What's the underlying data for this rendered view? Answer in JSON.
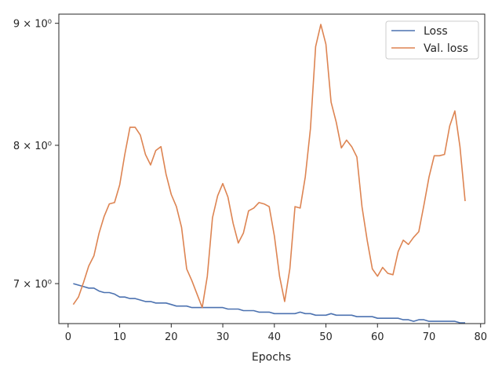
{
  "chart_data": {
    "type": "line",
    "title": "",
    "xlabel": "Epochs",
    "ylabel": "",
    "yscale": "log",
    "xlim": [
      -1.8,
      80.8
    ],
    "ylim": [
      6.735,
      9.08
    ],
    "x_ticks": [
      0,
      10,
      20,
      30,
      40,
      50,
      60,
      70,
      80
    ],
    "x_tick_labels": [
      "0",
      "10",
      "20",
      "30",
      "40",
      "50",
      "60",
      "70",
      "80"
    ],
    "y_ticks": [
      7,
      8,
      9
    ],
    "y_tick_labels": [
      "7 × 10⁰",
      "8 × 10⁰",
      "9 × 10⁰"
    ],
    "legend_position": "top-right",
    "grid": false,
    "series": [
      {
        "name": "Loss",
        "color": "#4c72b0",
        "x": [
          1,
          2,
          3,
          4,
          5,
          6,
          7,
          8,
          9,
          10,
          11,
          12,
          13,
          14,
          15,
          16,
          17,
          18,
          19,
          20,
          21,
          22,
          23,
          24,
          25,
          26,
          27,
          28,
          29,
          30,
          31,
          32,
          33,
          34,
          35,
          36,
          37,
          38,
          39,
          40,
          41,
          42,
          43,
          44,
          45,
          46,
          47,
          48,
          49,
          50,
          51,
          52,
          53,
          54,
          55,
          56,
          57,
          58,
          59,
          60,
          61,
          62,
          63,
          64,
          65,
          66,
          67,
          68,
          69,
          70,
          71,
          72,
          73,
          74,
          75,
          76,
          77
        ],
        "values": [
          7.0,
          6.99,
          6.98,
          6.97,
          6.97,
          6.95,
          6.94,
          6.94,
          6.93,
          6.91,
          6.91,
          6.9,
          6.9,
          6.89,
          6.88,
          6.88,
          6.87,
          6.87,
          6.87,
          6.86,
          6.85,
          6.85,
          6.85,
          6.84,
          6.84,
          6.84,
          6.84,
          6.84,
          6.84,
          6.84,
          6.83,
          6.83,
          6.83,
          6.82,
          6.82,
          6.82,
          6.81,
          6.81,
          6.81,
          6.8,
          6.8,
          6.8,
          6.8,
          6.8,
          6.81,
          6.8,
          6.8,
          6.79,
          6.79,
          6.79,
          6.8,
          6.79,
          6.79,
          6.79,
          6.79,
          6.78,
          6.78,
          6.78,
          6.78,
          6.77,
          6.77,
          6.77,
          6.77,
          6.77,
          6.76,
          6.76,
          6.75,
          6.76,
          6.76,
          6.75,
          6.75,
          6.75,
          6.75,
          6.75,
          6.75,
          6.74,
          6.74
        ]
      },
      {
        "name": "Val. loss",
        "color": "#dd8452",
        "x": [
          1,
          2,
          3,
          4,
          5,
          6,
          7,
          8,
          9,
          10,
          11,
          12,
          13,
          14,
          15,
          16,
          17,
          18,
          19,
          20,
          21,
          22,
          23,
          24,
          25,
          26,
          27,
          28,
          29,
          30,
          31,
          32,
          33,
          34,
          35,
          36,
          37,
          38,
          39,
          40,
          41,
          42,
          43,
          44,
          45,
          46,
          47,
          48,
          49,
          50,
          51,
          52,
          53,
          54,
          55,
          56,
          57,
          58,
          59,
          60,
          61,
          62,
          63,
          64,
          65,
          66,
          67,
          68,
          69,
          70,
          71,
          72,
          73,
          74,
          75,
          76,
          77
        ],
        "values": [
          6.86,
          6.91,
          7.01,
          7.12,
          7.19,
          7.35,
          7.47,
          7.56,
          7.57,
          7.7,
          7.93,
          8.14,
          8.14,
          8.08,
          7.93,
          7.85,
          7.96,
          7.99,
          7.78,
          7.63,
          7.54,
          7.39,
          7.1,
          7.02,
          6.93,
          6.84,
          7.05,
          7.46,
          7.62,
          7.71,
          7.61,
          7.42,
          7.28,
          7.35,
          7.51,
          7.53,
          7.57,
          7.56,
          7.54,
          7.33,
          7.05,
          6.88,
          7.1,
          7.54,
          7.53,
          7.76,
          8.13,
          8.8,
          8.99,
          8.82,
          8.34,
          8.18,
          7.98,
          8.04,
          7.99,
          7.91,
          7.54,
          7.3,
          7.1,
          7.05,
          7.11,
          7.07,
          7.06,
          7.22,
          7.3,
          7.27,
          7.32,
          7.36,
          7.55,
          7.76,
          7.92,
          7.92,
          7.93,
          8.15,
          8.27,
          7.99,
          7.58
        ]
      }
    ]
  }
}
